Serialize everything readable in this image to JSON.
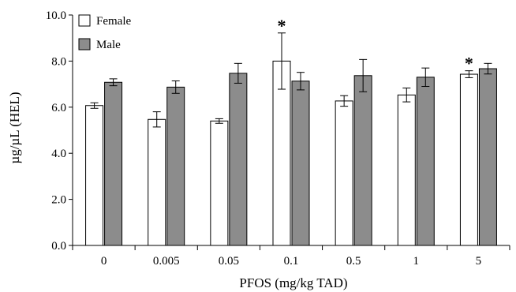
{
  "chart_data": {
    "type": "bar",
    "title": "",
    "xlabel": "PFOS (mg/kg TAD)",
    "ylabel": "µg/µL (HEL)",
    "categories": [
      "0",
      "0.005",
      "0.05",
      "0.1",
      "0.5",
      "1",
      "5"
    ],
    "ylim": [
      0,
      10
    ],
    "yticks": [
      "0.0",
      "2.0",
      "4.0",
      "6.0",
      "8.0",
      "10.0"
    ],
    "grid": false,
    "legend_position": "top-left",
    "series": [
      {
        "name": "Female",
        "color": "#ffffff",
        "values": [
          6.07,
          5.47,
          5.4,
          8.0,
          6.27,
          6.53,
          7.43
        ],
        "errors": [
          0.12,
          0.33,
          0.1,
          1.22,
          0.23,
          0.3,
          0.15
        ]
      },
      {
        "name": "Male",
        "color": "#8c8c8c",
        "values": [
          7.08,
          6.87,
          7.47,
          7.13,
          7.37,
          7.3,
          7.67
        ],
        "errors": [
          0.15,
          0.27,
          0.43,
          0.38,
          0.7,
          0.4,
          0.23
        ]
      }
    ],
    "annotations": [
      {
        "category": "0.1",
        "series": "Female",
        "text": "*"
      },
      {
        "category": "5",
        "series": "Female",
        "text": "*"
      }
    ]
  }
}
